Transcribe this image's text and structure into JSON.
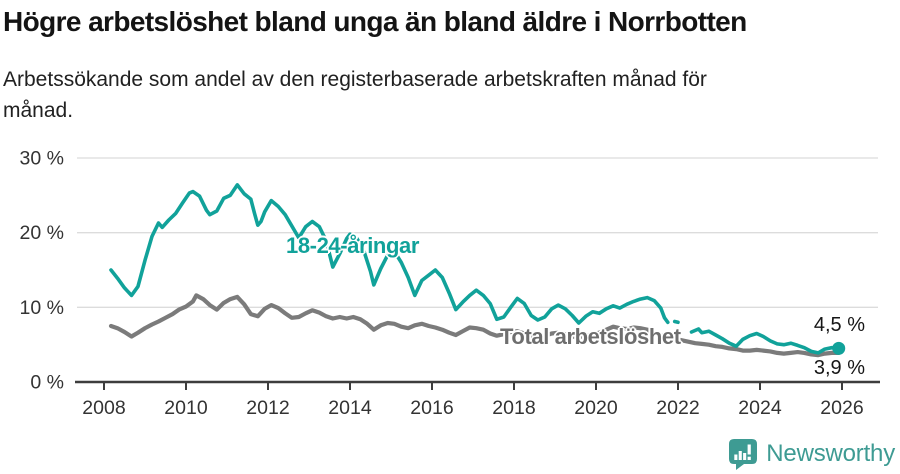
{
  "header": {
    "title": "Högre arbetslöshet bland unga än bland äldre i Norrbotten",
    "subtitle_line1": "Arbetssökande som andel av den registerbaserade arbetskraften månad för",
    "subtitle_line2": "månad."
  },
  "chart_data": {
    "type": "line",
    "title": "Högre arbetslöshet bland unga än bland äldre i Norrbotten",
    "subtitle": "Arbetssökande som andel av den registerbaserade arbetskraften månad för månad.",
    "xlabel": "",
    "ylabel": "",
    "ylim": [
      0,
      30
    ],
    "xlim": [
      2007.3,
      2026.9
    ],
    "grid": "horizontal",
    "legend_position": "inline-labels",
    "x_ticks": [
      2008,
      2010,
      2012,
      2014,
      2016,
      2018,
      2020,
      2022,
      2024,
      2026
    ],
    "y_ticks": [
      0,
      10,
      20,
      30
    ],
    "y_tick_labels": [
      "0 %",
      "10 %",
      "20 %",
      "30 %"
    ],
    "series": [
      {
        "name": "Total arbetslöshet",
        "color": "#7b7b7b",
        "end_label": "3,9 %",
        "end_value": 3.9,
        "x": [
          2008.17,
          2008.33,
          2008.5,
          2008.67,
          2008.83,
          2009.0,
          2009.17,
          2009.33,
          2009.5,
          2009.67,
          2009.83,
          2010.0,
          2010.17,
          2010.25,
          2010.42,
          2010.58,
          2010.75,
          2010.92,
          2011.08,
          2011.25,
          2011.42,
          2011.58,
          2011.75,
          2011.92,
          2012.08,
          2012.25,
          2012.42,
          2012.58,
          2012.75,
          2012.92,
          2013.08,
          2013.25,
          2013.42,
          2013.58,
          2013.75,
          2013.92,
          2014.08,
          2014.25,
          2014.42,
          2014.58,
          2014.75,
          2014.92,
          2015.08,
          2015.25,
          2015.42,
          2015.58,
          2015.75,
          2015.92,
          2016.08,
          2016.25,
          2016.42,
          2016.58,
          2016.75,
          2016.92,
          2017.08,
          2017.25,
          2017.42,
          2017.58,
          2017.75,
          2017.92,
          2018.08,
          2018.25,
          2018.42,
          2018.58,
          2018.75,
          2018.92,
          2019.08,
          2019.25,
          2019.42,
          2019.58,
          2019.75,
          2019.92,
          2020.08,
          2020.25,
          2020.42,
          2020.58,
          2020.75,
          2020.92,
          2021.08,
          2021.25,
          2021.42,
          2021.58,
          2021.75,
          2021.92,
          2022.08,
          2022.25,
          2022.42,
          2022.58,
          2022.75,
          2022.92,
          2023.08,
          2023.25,
          2023.42,
          2023.58,
          2023.75,
          2023.92,
          2024.08,
          2024.25,
          2024.42,
          2024.58,
          2024.75,
          2024.92,
          2025.08,
          2025.25,
          2025.42,
          2025.58,
          2025.75,
          2025.92
        ],
        "y": [
          7.5,
          7.2,
          6.7,
          6.1,
          6.6,
          7.2,
          7.7,
          8.1,
          8.6,
          9.1,
          9.7,
          10.1,
          10.8,
          11.6,
          11.1,
          10.3,
          9.7,
          10.6,
          11.1,
          11.4,
          10.4,
          9.1,
          8.8,
          9.8,
          10.3,
          9.9,
          9.2,
          8.6,
          8.7,
          9.2,
          9.6,
          9.3,
          8.8,
          8.5,
          8.7,
          8.5,
          8.7,
          8.4,
          7.8,
          7.0,
          7.6,
          7.9,
          7.8,
          7.4,
          7.2,
          7.6,
          7.8,
          7.5,
          7.3,
          7.0,
          6.6,
          6.3,
          6.8,
          7.3,
          7.2,
          7.0,
          6.5,
          6.2,
          6.4,
          6.7,
          6.8,
          6.5,
          6.1,
          6.0,
          6.2,
          6.5,
          6.6,
          6.4,
          6.1,
          6.0,
          6.2,
          6.4,
          6.6,
          7.0,
          7.4,
          7.2,
          7.1,
          7.3,
          7.2,
          7.0,
          6.6,
          6.3,
          6.0,
          5.8,
          5.6,
          5.4,
          5.2,
          5.1,
          5.0,
          4.8,
          4.7,
          4.5,
          4.4,
          4.2,
          4.2,
          4.3,
          4.2,
          4.1,
          3.9,
          3.8,
          3.9,
          4.0,
          3.9,
          3.7,
          3.6,
          3.8,
          3.9,
          3.9
        ]
      },
      {
        "name": "18-24-åringar",
        "color": "#11a29a",
        "end_label": "4,5 %",
        "end_value": 4.5,
        "end_dot": true,
        "x": [
          2008.17,
          2008.33,
          2008.5,
          2008.67,
          2008.83,
          2009.0,
          2009.17,
          2009.33,
          2009.42,
          2009.58,
          2009.75,
          2009.92,
          2010.08,
          2010.17,
          2010.33,
          2010.5,
          2010.58,
          2010.75,
          2010.92,
          2011.08,
          2011.25,
          2011.42,
          2011.58,
          2011.67,
          2011.75,
          2011.83,
          2011.92,
          2012.08,
          2012.25,
          2012.42,
          2012.58,
          2012.75,
          2012.92,
          2013.08,
          2013.25,
          2013.42,
          2013.58,
          2013.75,
          2013.92,
          2014.0,
          2014.17,
          2014.33,
          2014.5,
          2014.58,
          2014.75,
          2014.92,
          2015.08,
          2015.25,
          2015.42,
          2015.58,
          2015.75,
          2015.92,
          2016.08,
          2016.25,
          2016.42,
          2016.58,
          2016.75,
          2016.92,
          2017.08,
          2017.25,
          2017.42,
          2017.58,
          2017.75,
          2017.92,
          2018.08,
          2018.25,
          2018.42,
          2018.58,
          2018.75,
          2018.92,
          2019.08,
          2019.25,
          2019.42,
          2019.58,
          2019.75,
          2019.92,
          2020.08,
          2020.25,
          2020.42,
          2020.58,
          2020.75,
          2020.92,
          2021.08,
          2021.25,
          2021.42,
          2021.58,
          2021.67,
          2021.75,
          2021.83,
          2021.92,
          2022.0,
          2022.17,
          2022.33,
          2022.5,
          2022.58,
          2022.75,
          2022.92,
          2023.08,
          2023.25,
          2023.42,
          2023.58,
          2023.75,
          2023.92,
          2024.08,
          2024.25,
          2024.42,
          2024.58,
          2024.75,
          2024.92,
          2025.08,
          2025.25,
          2025.42,
          2025.58,
          2025.75,
          2025.92
        ],
        "y": [
          15.0,
          13.9,
          12.6,
          11.6,
          12.8,
          16.3,
          19.5,
          21.3,
          20.7,
          21.7,
          22.6,
          24.0,
          25.3,
          25.5,
          24.9,
          23.0,
          22.4,
          22.9,
          24.6,
          25.0,
          26.4,
          25.2,
          24.5,
          22.6,
          21.0,
          21.5,
          22.8,
          24.3,
          23.5,
          22.4,
          20.9,
          19.3,
          20.8,
          21.5,
          20.8,
          18.9,
          15.4,
          17.2,
          19.2,
          19.8,
          19.2,
          17.7,
          14.8,
          13.0,
          15.2,
          17.0,
          17.5,
          16.0,
          14.0,
          11.6,
          13.6,
          14.3,
          15.0,
          14.0,
          11.9,
          9.7,
          10.7,
          11.6,
          12.3,
          11.6,
          10.5,
          8.4,
          8.7,
          10.0,
          11.2,
          10.5,
          8.9,
          8.3,
          8.7,
          9.8,
          10.3,
          9.8,
          8.9,
          7.9,
          8.8,
          9.4,
          9.2,
          9.8,
          10.2,
          9.9,
          10.4,
          10.8,
          11.1,
          11.3,
          10.9,
          9.9,
          8.6,
          8.0,
          null,
          8.1,
          8.0,
          null,
          6.7,
          7.1,
          6.6,
          6.8,
          6.3,
          5.8,
          5.2,
          4.8,
          5.7,
          6.2,
          6.5,
          6.1,
          5.5,
          5.1,
          5.0,
          5.2,
          4.9,
          4.6,
          4.1,
          3.9,
          4.4,
          4.6,
          4.5
        ]
      }
    ]
  },
  "logo": {
    "text": "Newsworthy",
    "color": "#3e9b93",
    "icon": "bar-chart-exclamation-badge"
  },
  "colors": {
    "young_line": "#11a29a",
    "total_line": "#7b7b7b",
    "gridline": "#dcdcdc",
    "axis": "#3d3d3d",
    "tick_text": "#333333",
    "title_text": "#141414"
  }
}
